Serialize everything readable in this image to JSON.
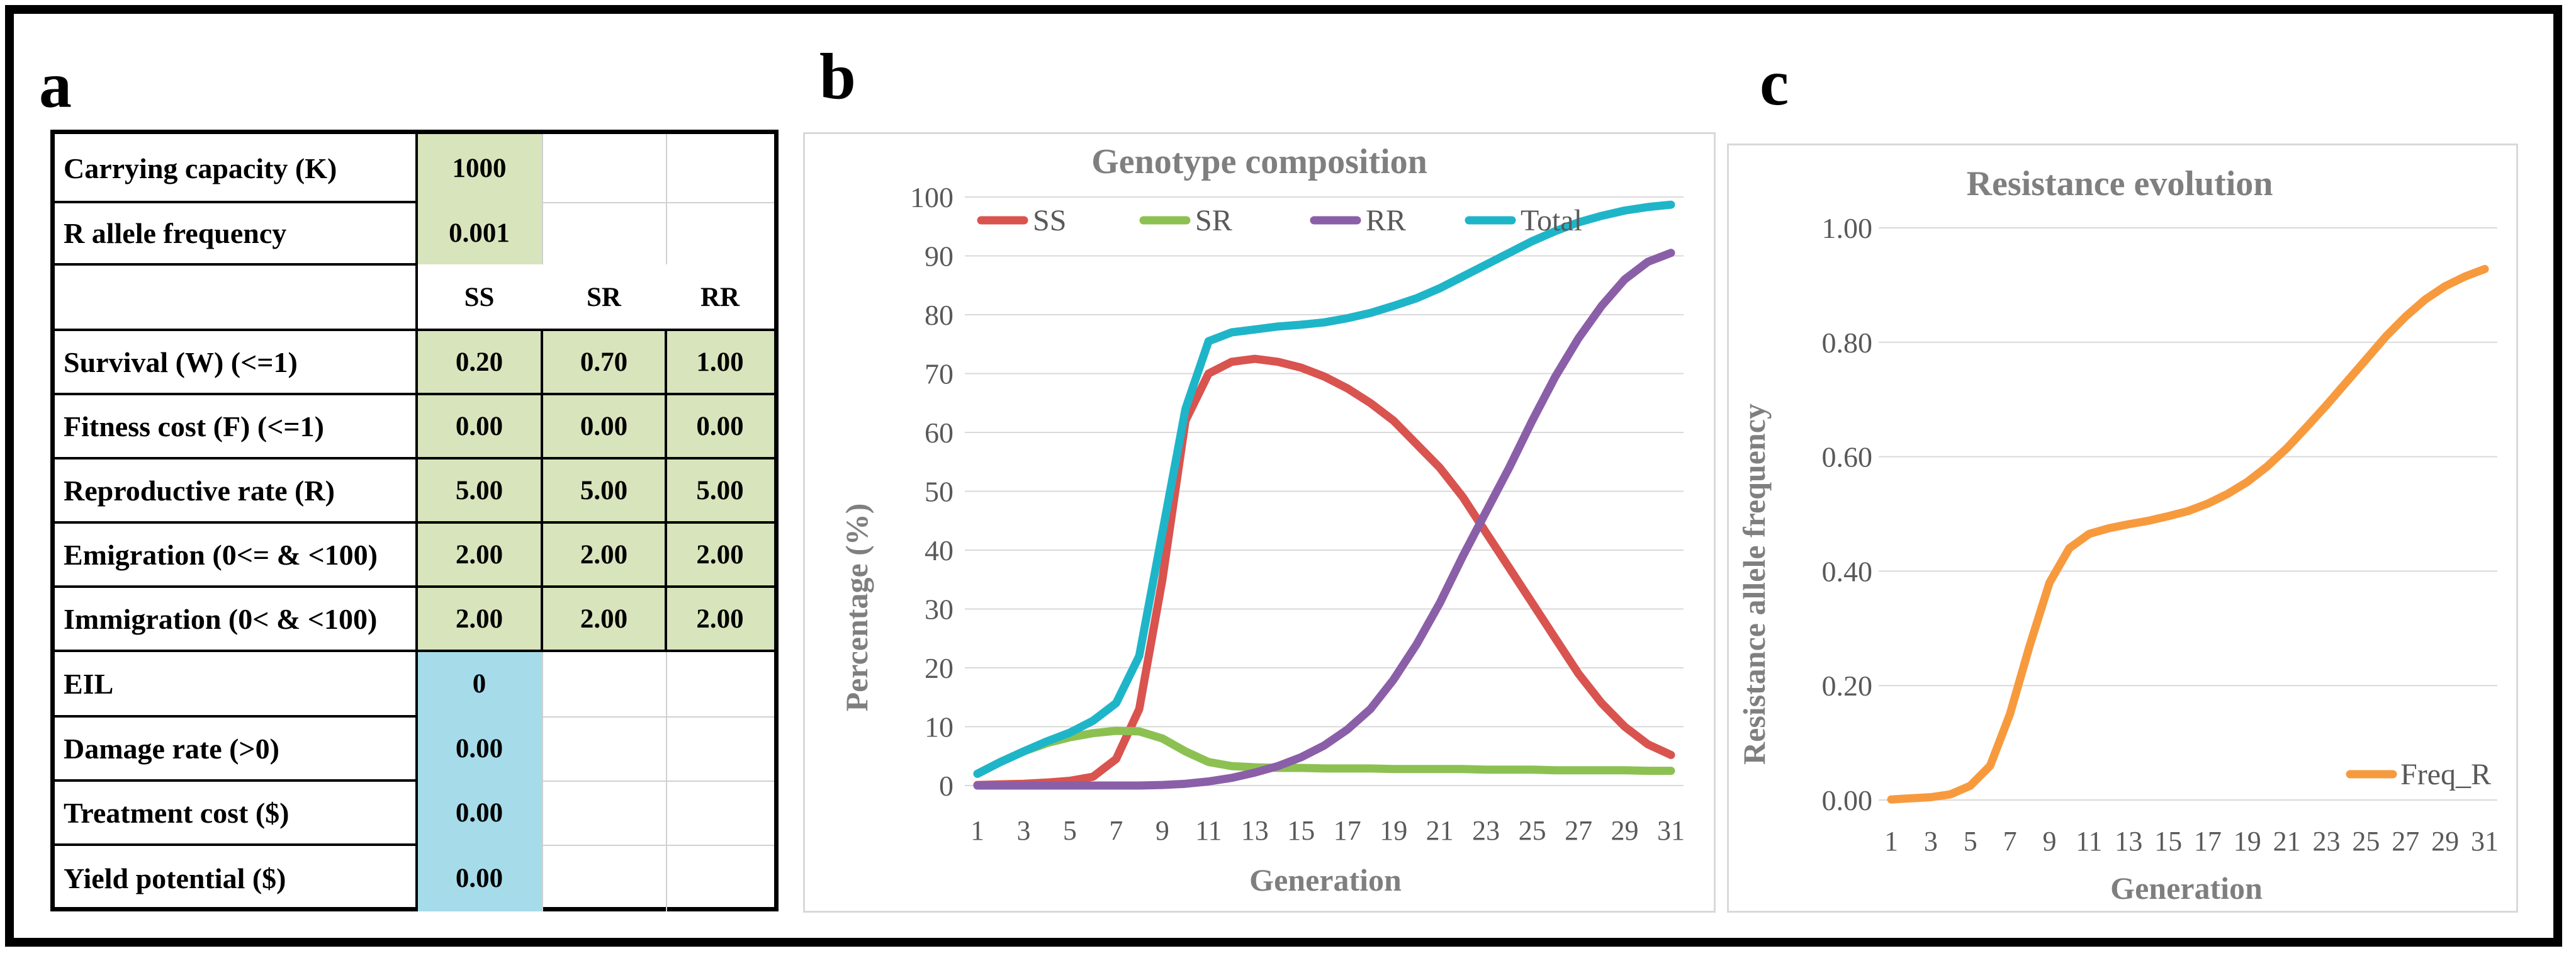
{
  "panel_labels": {
    "a": "a",
    "b": "b",
    "c": "c"
  },
  "table": {
    "carrying_capacity": {
      "label": "Carrying capacity (K)",
      "value": "1000"
    },
    "r_allele_frequency": {
      "label": "R allele frequency",
      "value": "0.001"
    },
    "headers": [
      "SS",
      "SR",
      "RR"
    ],
    "rows": [
      {
        "label": "Survival (W) (<=1)",
        "values": [
          "0.20",
          "0.70",
          "1.00"
        ]
      },
      {
        "label": "Fitness cost (F) (<=1)",
        "values": [
          "0.00",
          "0.00",
          "0.00"
        ]
      },
      {
        "label": "Reproductive rate (R)",
        "values": [
          "5.00",
          "5.00",
          "5.00"
        ]
      },
      {
        "label": "Emigration (0<= & <100)",
        "values": [
          "2.00",
          "2.00",
          "2.00"
        ]
      },
      {
        "label": "Immigration (0< & <100)",
        "values": [
          "2.00",
          "2.00",
          "2.00"
        ]
      }
    ],
    "economic_rows": [
      {
        "label": "EIL",
        "value": "0"
      },
      {
        "label": "Damage rate (>0)",
        "value": "0.00"
      },
      {
        "label": "Treatment cost ($)",
        "value": "0.00"
      },
      {
        "label": "Yield potential ($)",
        "value": "0.00"
      }
    ]
  },
  "colors": {
    "SS": "#d9534f",
    "SR": "#8cc152",
    "RR": "#8a5fa8",
    "Total": "#1fb5c9",
    "Freq_R": "#f79a3e",
    "cell_green": "#d8e4bc",
    "cell_blue": "#a6dcea"
  },
  "chart_data": [
    {
      "type": "line",
      "title": "Genotype composition",
      "xlabel": "Generation",
      "ylabel": "Percentage (%)",
      "x": [
        1,
        2,
        3,
        4,
        5,
        6,
        7,
        8,
        9,
        10,
        11,
        12,
        13,
        14,
        15,
        16,
        17,
        18,
        19,
        20,
        21,
        22,
        23,
        24,
        25,
        26,
        27,
        28,
        29,
        30,
        31
      ],
      "xticks": [
        "1",
        "3",
        "5",
        "7",
        "9",
        "11",
        "13",
        "15",
        "17",
        "19",
        "21",
        "23",
        "25",
        "27",
        "29",
        "31"
      ],
      "yticks": [
        "0",
        "10",
        "20",
        "30",
        "40",
        "50",
        "60",
        "70",
        "80",
        "90",
        "100"
      ],
      "ylim": [
        0,
        100
      ],
      "legend_position": "top",
      "series": [
        {
          "name": "SS",
          "values": [
            0.1,
            0.2,
            0.3,
            0.5,
            0.8,
            1.5,
            4.5,
            13,
            35,
            62,
            70,
            72,
            72.5,
            72,
            71,
            69.5,
            67.5,
            65,
            62,
            58,
            54,
            49,
            43,
            37,
            31,
            25,
            19,
            14,
            10,
            7,
            5.2
          ]
        },
        {
          "name": "SR",
          "values": [
            2,
            4,
            5.8,
            7.2,
            8.2,
            8.9,
            9.3,
            9.2,
            8,
            5.8,
            4,
            3.3,
            3.1,
            3,
            3,
            2.9,
            2.9,
            2.9,
            2.8,
            2.8,
            2.8,
            2.8,
            2.7,
            2.7,
            2.7,
            2.6,
            2.6,
            2.6,
            2.6,
            2.5,
            2.5
          ]
        },
        {
          "name": "RR",
          "values": [
            0,
            0,
            0,
            0,
            0,
            0,
            0,
            0,
            0.1,
            0.3,
            0.7,
            1.3,
            2.2,
            3.3,
            4.8,
            6.8,
            9.5,
            13,
            18,
            24,
            31,
            39,
            46.5,
            54,
            62,
            69.5,
            76,
            81.5,
            86,
            89,
            90.5
          ]
        },
        {
          "name": "Total",
          "values": [
            2,
            4,
            5.8,
            7.5,
            9,
            11,
            14,
            22,
            43,
            64,
            75.5,
            77,
            77.5,
            78,
            78.3,
            78.7,
            79.4,
            80.3,
            81.5,
            82.8,
            84.5,
            86.5,
            88.5,
            90.5,
            92.5,
            94.2,
            95.7,
            96.8,
            97.7,
            98.3,
            98.7
          ]
        }
      ]
    },
    {
      "type": "line",
      "title": "Resistance evolution",
      "xlabel": "Generation",
      "ylabel": "Resistance allele frequency",
      "x": [
        1,
        2,
        3,
        4,
        5,
        6,
        7,
        8,
        9,
        10,
        11,
        12,
        13,
        14,
        15,
        16,
        17,
        18,
        19,
        20,
        21,
        22,
        23,
        24,
        25,
        26,
        27,
        28,
        29,
        30,
        31
      ],
      "xticks": [
        "1",
        "3",
        "5",
        "7",
        "9",
        "11",
        "13",
        "15",
        "17",
        "19",
        "21",
        "23",
        "25",
        "27",
        "29",
        "31"
      ],
      "yticks": [
        "0.00",
        "0.20",
        "0.40",
        "0.60",
        "0.80",
        "1.00"
      ],
      "ylim": [
        0,
        1
      ],
      "legend_position": "bottom-right",
      "series": [
        {
          "name": "Freq_R",
          "values": [
            0.001,
            0.003,
            0.005,
            0.01,
            0.025,
            0.06,
            0.15,
            0.27,
            0.38,
            0.44,
            0.465,
            0.475,
            0.482,
            0.488,
            0.496,
            0.505,
            0.518,
            0.535,
            0.556,
            0.583,
            0.615,
            0.652,
            0.69,
            0.73,
            0.77,
            0.81,
            0.845,
            0.875,
            0.898,
            0.915,
            0.928
          ]
        }
      ]
    }
  ]
}
